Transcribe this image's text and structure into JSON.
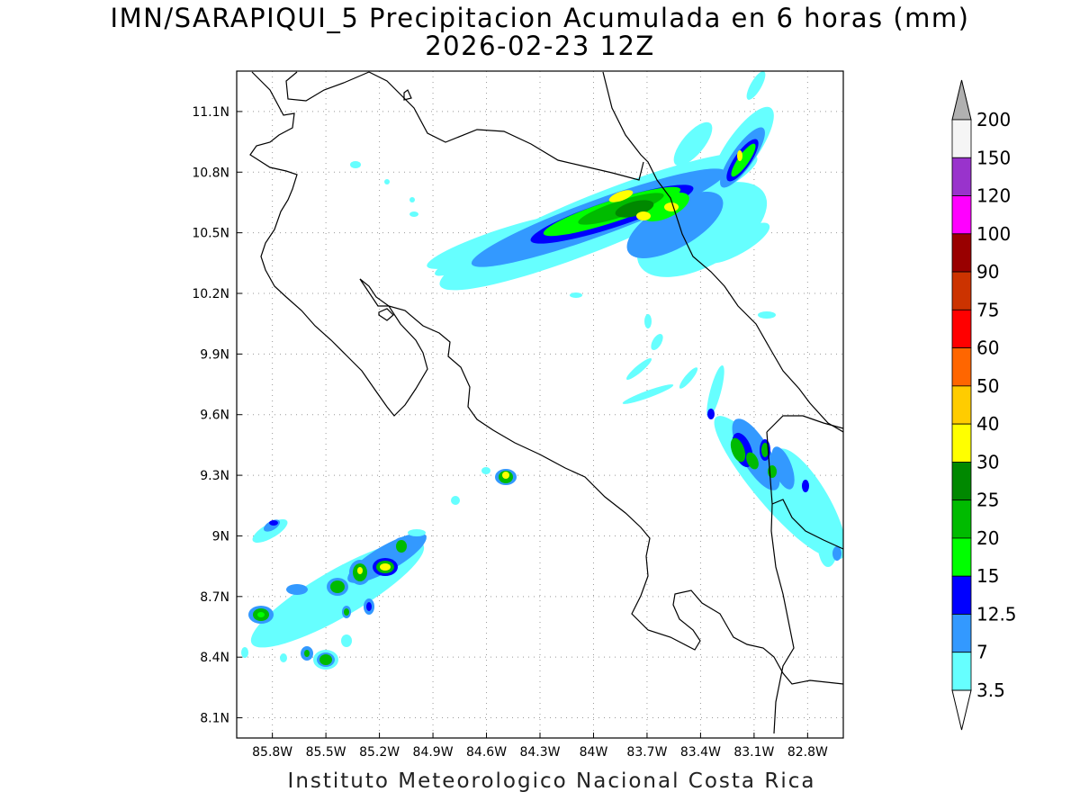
{
  "title": {
    "line1": "IMN/SARAPIQUI_5 Precipitacion Acumulada en 6 horas (mm)",
    "line2": "2026-02-23 12Z"
  },
  "footer": "Instituto Meteorologico Nacional Costa Rica",
  "map": {
    "lon_range": [
      -86.0,
      -82.6
    ],
    "lat_range": [
      8.0,
      11.3
    ],
    "lon_ticks": [
      "85.8W",
      "85.5W",
      "85.2W",
      "84.9W",
      "84.6W",
      "84.3W",
      "84W",
      "83.7W",
      "83.4W",
      "83.1W",
      "82.8W"
    ],
    "lat_ticks": [
      "11.1N",
      "10.8N",
      "10.5N",
      "10.2N",
      "9.9N",
      "9.6N",
      "9.3N",
      "9N",
      "8.7N",
      "8.4N",
      "8.1N"
    ],
    "gridlines": "dotted"
  },
  "colorbar": {
    "labels": [
      "200",
      "150",
      "120",
      "100",
      "90",
      "75",
      "60",
      "50",
      "40",
      "30",
      "25",
      "20",
      "15",
      "12.5",
      "7",
      "3.5"
    ],
    "colors": [
      "#f5f5f5",
      "#9933cc",
      "#ff00ff",
      "#990000",
      "#cc3300",
      "#ff0000",
      "#ff6600",
      "#ffcc00",
      "#ffff00",
      "#008800",
      "#00bb00",
      "#00ff00",
      "#0000ff",
      "#3399ff",
      "#66ffff"
    ],
    "top_arrow_color": "#b0b0b0",
    "bottom_arrow_color": "#ffffff"
  },
  "precip_colors": {
    "c35": "#66ffff",
    "c7": "#3399ff",
    "c125": "#0000ff",
    "c15": "#00ff00",
    "c20": "#00bb00",
    "c25": "#008800",
    "c30": "#ffff00",
    "c40": "#ffcc00"
  }
}
